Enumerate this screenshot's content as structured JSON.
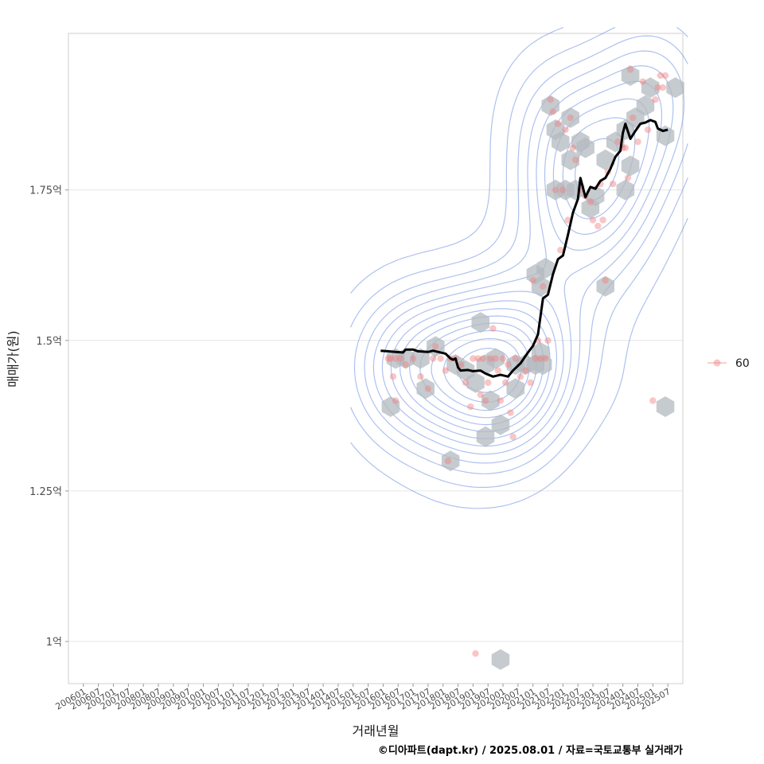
{
  "chart_data": {
    "type": "scatter",
    "xlabel": "거래년월",
    "ylabel": "매매가(원)",
    "caption": "©디아파트(dapt.kr) / 2025.08.01 / 자료=국토교통부 실거래가",
    "y_unit": "억",
    "ylim": [
      0.93,
      2.01
    ],
    "y_ticks": [
      {
        "value": 1.0,
        "label": "1억"
      },
      {
        "value": 1.25,
        "label": "1.25억"
      },
      {
        "value": 1.5,
        "label": "1.5억"
      },
      {
        "value": 1.75,
        "label": "1.75억"
      }
    ],
    "x_range": [
      "2005-07",
      "2026-01"
    ],
    "x_ticks": [
      "200601",
      "200607",
      "200701",
      "200707",
      "200801",
      "200807",
      "200901",
      "200907",
      "201001",
      "201007",
      "201101",
      "201107",
      "201201",
      "201207",
      "201301",
      "201307",
      "201401",
      "201407",
      "201501",
      "201507",
      "201601",
      "201607",
      "201701",
      "201707",
      "201801",
      "201807",
      "201901",
      "201907",
      "202001",
      "202007",
      "202101",
      "202107",
      "202201",
      "202207",
      "202301",
      "202307",
      "202401",
      "202407",
      "202501",
      "202507"
    ],
    "grid": "horizontal",
    "legend": {
      "position": "right",
      "entries": [
        {
          "label": "60",
          "color": "#f08080"
        }
      ]
    },
    "colors": {
      "points": "#f08080",
      "hex": "#b3b9bf",
      "density": "#6b8ee0",
      "trend": "#000000"
    },
    "series": [
      {
        "name": "60",
        "kind": "points",
        "points": [
          [
            "2016-03",
            1.47
          ],
          [
            "2016-04",
            1.47
          ],
          [
            "2016-05",
            1.44
          ],
          [
            "2016-06",
            1.4
          ],
          [
            "2016-06",
            1.47
          ],
          [
            "2016-08",
            1.47
          ],
          [
            "2016-10",
            1.46
          ],
          [
            "2017-01",
            1.47
          ],
          [
            "2017-04",
            1.44
          ],
          [
            "2017-07",
            1.42
          ],
          [
            "2017-09",
            1.47
          ],
          [
            "2017-10",
            1.49
          ],
          [
            "2017-12",
            1.47
          ],
          [
            "2018-02",
            1.45
          ],
          [
            "2018-03",
            1.3
          ],
          [
            "2018-04",
            1.47
          ],
          [
            "2018-06",
            1.47
          ],
          [
            "2018-08",
            1.46
          ],
          [
            "2018-10",
            1.43
          ],
          [
            "2018-12",
            1.39
          ],
          [
            "2019-01",
            1.47
          ],
          [
            "2019-02",
            0.98
          ],
          [
            "2019-03",
            1.47
          ],
          [
            "2019-04",
            1.41
          ],
          [
            "2019-05",
            1.47
          ],
          [
            "2019-06",
            1.4
          ],
          [
            "2019-07",
            1.43
          ],
          [
            "2019-08",
            1.47
          ],
          [
            "2019-09",
            1.52
          ],
          [
            "2019-10",
            1.47
          ],
          [
            "2019-11",
            1.45
          ],
          [
            "2019-12",
            1.4
          ],
          [
            "2020-01",
            1.47
          ],
          [
            "2020-02",
            1.43
          ],
          [
            "2020-03",
            1.46
          ],
          [
            "2020-04",
            1.38
          ],
          [
            "2020-05",
            1.34
          ],
          [
            "2020-06",
            1.47
          ],
          [
            "2020-08",
            1.44
          ],
          [
            "2020-10",
            1.45
          ],
          [
            "2020-12",
            1.43
          ],
          [
            "2021-01",
            1.6
          ],
          [
            "2021-02",
            1.47
          ],
          [
            "2021-03",
            1.5
          ],
          [
            "2021-04",
            1.47
          ],
          [
            "2021-05",
            1.59
          ],
          [
            "2021-06",
            1.47
          ],
          [
            "2021-07",
            1.5
          ],
          [
            "2021-08",
            1.9
          ],
          [
            "2021-09",
            1.88
          ],
          [
            "2021-10",
            1.75
          ],
          [
            "2021-11",
            1.86
          ],
          [
            "2021-12",
            1.65
          ],
          [
            "2022-01",
            1.75
          ],
          [
            "2022-02",
            1.85
          ],
          [
            "2022-03",
            1.7
          ],
          [
            "2022-04",
            1.87
          ],
          [
            "2022-05",
            1.82
          ],
          [
            "2022-06",
            1.8
          ],
          [
            "2022-08",
            1.75
          ],
          [
            "2022-10",
            1.74
          ],
          [
            "2022-12",
            1.73
          ],
          [
            "2023-01",
            1.7
          ],
          [
            "2023-03",
            1.69
          ],
          [
            "2023-04",
            1.76
          ],
          [
            "2023-05",
            1.7
          ],
          [
            "2023-06",
            1.6
          ],
          [
            "2023-07",
            1.78
          ],
          [
            "2023-09",
            1.76
          ],
          [
            "2023-11",
            1.83
          ],
          [
            "2024-01",
            1.82
          ],
          [
            "2024-02",
            1.82
          ],
          [
            "2024-03",
            1.77
          ],
          [
            "2024-04",
            1.95
          ],
          [
            "2024-05",
            1.87
          ],
          [
            "2024-07",
            1.83
          ],
          [
            "2024-09",
            1.93
          ],
          [
            "2024-11",
            1.85
          ],
          [
            "2025-01",
            1.4
          ],
          [
            "2025-02",
            1.9
          ],
          [
            "2025-03",
            1.92
          ],
          [
            "2025-04",
            1.94
          ],
          [
            "2025-05",
            1.92
          ],
          [
            "2025-06",
            1.94
          ]
        ]
      },
      {
        "name": "",
        "kind": "trend",
        "points": [
          [
            "2015-12",
            1.483
          ],
          [
            "2016-03",
            1.482
          ],
          [
            "2016-06",
            1.481
          ],
          [
            "2016-09",
            1.48
          ],
          [
            "2016-10",
            1.485
          ],
          [
            "2017-01",
            1.485
          ],
          [
            "2017-03",
            1.482
          ],
          [
            "2017-07",
            1.481
          ],
          [
            "2017-09",
            1.483
          ],
          [
            "2017-12",
            1.48
          ],
          [
            "2018-02",
            1.478
          ],
          [
            "2018-04",
            1.47
          ],
          [
            "2018-05",
            1.468
          ],
          [
            "2018-06",
            1.47
          ],
          [
            "2018-07",
            1.455
          ],
          [
            "2018-08",
            1.45
          ],
          [
            "2018-11",
            1.451
          ],
          [
            "2019-01",
            1.449
          ],
          [
            "2019-04",
            1.45
          ],
          [
            "2019-06",
            1.445
          ],
          [
            "2019-09",
            1.44
          ],
          [
            "2019-12",
            1.443
          ],
          [
            "2020-03",
            1.44
          ],
          [
            "2020-05",
            1.45
          ],
          [
            "2020-08",
            1.462
          ],
          [
            "2020-11",
            1.48
          ],
          [
            "2021-01",
            1.491
          ],
          [
            "2021-03",
            1.51
          ],
          [
            "2021-05",
            1.57
          ],
          [
            "2021-07",
            1.576
          ],
          [
            "2021-09",
            1.61
          ],
          [
            "2021-11",
            1.635
          ],
          [
            "2022-01",
            1.641
          ],
          [
            "2022-03",
            1.675
          ],
          [
            "2022-05",
            1.712
          ],
          [
            "2022-07",
            1.735
          ],
          [
            "2022-08",
            1.77
          ],
          [
            "2022-10",
            1.738
          ],
          [
            "2022-12",
            1.755
          ],
          [
            "2023-02",
            1.752
          ],
          [
            "2023-04",
            1.765
          ],
          [
            "2023-06",
            1.77
          ],
          [
            "2023-08",
            1.785
          ],
          [
            "2023-10",
            1.805
          ],
          [
            "2023-12",
            1.815
          ],
          [
            "2024-01",
            1.845
          ],
          [
            "2024-02",
            1.86
          ],
          [
            "2024-04",
            1.835
          ],
          [
            "2024-06",
            1.848
          ],
          [
            "2024-08",
            1.86
          ],
          [
            "2024-10",
            1.862
          ],
          [
            "2024-12",
            1.866
          ],
          [
            "2025-02",
            1.863
          ],
          [
            "2025-03",
            1.852
          ],
          [
            "2025-05",
            1.848
          ],
          [
            "2025-07",
            1.85
          ]
        ]
      }
    ],
    "hex_bins": [
      [
        "2016-06",
        1.47
      ],
      [
        "2016-10",
        1.47
      ],
      [
        "2016-04",
        1.39
      ],
      [
        "2017-04",
        1.47
      ],
      [
        "2017-06",
        1.42
      ],
      [
        "2017-10",
        1.49
      ],
      [
        "2018-04",
        1.3
      ],
      [
        "2018-06",
        1.46
      ],
      [
        "2018-10",
        1.45
      ],
      [
        "2019-06",
        1.46
      ],
      [
        "2019-02",
        1.43
      ],
      [
        "2019-08",
        1.4
      ],
      [
        "2019-10",
        1.47
      ],
      [
        "2019-04",
        1.53
      ],
      [
        "2019-12",
        1.36
      ],
      [
        "2019-06",
        1.34
      ],
      [
        "2020-06",
        1.46
      ],
      [
        "2020-06",
        1.42
      ],
      [
        "2020-10",
        1.46
      ],
      [
        "2021-02",
        1.46
      ],
      [
        "2021-04",
        1.48
      ],
      [
        "2021-05",
        1.46
      ],
      [
        "2021-02",
        1.61
      ],
      [
        "2021-04",
        1.59
      ],
      [
        "2021-06",
        1.62
      ],
      [
        "2021-08",
        1.89
      ],
      [
        "2021-10",
        1.85
      ],
      [
        "2021-12",
        1.83
      ],
      [
        "2021-10",
        1.75
      ],
      [
        "2022-02",
        1.75
      ],
      [
        "2022-04",
        1.8
      ],
      [
        "2022-06",
        1.75
      ],
      [
        "2022-04",
        1.87
      ],
      [
        "2022-08",
        1.83
      ],
      [
        "2022-10",
        1.82
      ],
      [
        "2022-12",
        1.72
      ],
      [
        "2023-02",
        1.74
      ],
      [
        "2023-06",
        1.59
      ],
      [
        "2023-06",
        1.8
      ],
      [
        "2023-10",
        1.83
      ],
      [
        "2024-02",
        1.85
      ],
      [
        "2024-02",
        1.75
      ],
      [
        "2024-04",
        1.79
      ],
      [
        "2024-06",
        1.87
      ],
      [
        "2024-04",
        1.94
      ],
      [
        "2024-10",
        1.89
      ],
      [
        "2024-12",
        1.92
      ],
      [
        "2025-06",
        1.84
      ],
      [
        "2025-06",
        1.39
      ],
      [
        "2025-10",
        1.92
      ],
      [
        "2019-12",
        0.97
      ]
    ]
  }
}
